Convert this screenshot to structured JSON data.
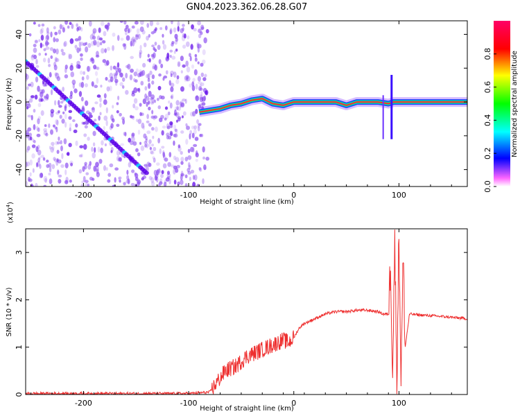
{
  "figure_title": "GN04.2023.362.06.28.G07",
  "colors": {
    "ridge": "#5a00e8",
    "noise": "#8a4cf0",
    "line": "#ee2f2f",
    "colorbar": [
      "#ff00ff",
      "#0000ff",
      "#00ffff",
      "#00ff00",
      "#ffff00",
      "#ff0000",
      "#ff0066"
    ]
  },
  "chart_data": [
    {
      "type": "heatmap",
      "title": "",
      "xlabel": "Height of straight line (km)",
      "ylabel": "Frequency (Hz)",
      "xlim": [
        -255,
        165
      ],
      "ylim": [
        -50,
        48
      ],
      "xticks": [
        -200,
        -100,
        0,
        100
      ],
      "xtick_labels": [
        "-200",
        "-100",
        "0",
        "100"
      ],
      "yticks": [
        -40,
        -20,
        0,
        20,
        40
      ],
      "ytick_labels": [
        "-40",
        "-20",
        "0",
        "20",
        "40"
      ],
      "colorbar": {
        "label": "Normalized spectral amplitude",
        "range": [
          0,
          1
        ],
        "ticks": [
          0,
          0.2,
          0.4,
          0.6,
          0.8
        ],
        "tick_labels": [
          "0.0",
          "0.2",
          "0.4",
          "0.6",
          "0.8"
        ]
      },
      "features": {
        "noisy_region_x": [
          -255,
          -82
        ],
        "diagonal_line": {
          "x": [
            -255,
            -140
          ],
          "y": [
            24,
            -42
          ]
        },
        "main_trace": {
          "x": [
            -90,
            -80,
            -70,
            -60,
            -50,
            -40,
            -30,
            -20,
            -10,
            0,
            20,
            40,
            50,
            60,
            80,
            90,
            95,
            100,
            120,
            140,
            165
          ],
          "y": [
            -6,
            -5,
            -4,
            -2,
            -1,
            1,
            2,
            -1,
            -2,
            0,
            0,
            0,
            -2,
            0,
            0,
            -1,
            0,
            0,
            0,
            0,
            0
          ]
        },
        "spike_x": 93,
        "spike_range": [
          -22,
          16
        ]
      }
    },
    {
      "type": "line",
      "title": "",
      "xlabel": "Height of straight line (km)",
      "ylabel": "SNR (10 * v/v)",
      "y_multiplier": "(x10",
      "y_multiplier_exp": "4",
      "y_multiplier_close": ")",
      "xlim": [
        -255,
        165
      ],
      "ylim": [
        0,
        3.5
      ],
      "xticks": [
        -200,
        -100,
        0,
        100
      ],
      "xtick_labels": [
        "-200",
        "-100",
        "0",
        "100"
      ],
      "yticks": [
        0,
        1,
        2,
        3
      ],
      "ytick_labels": [
        "0",
        "1",
        "2",
        "3"
      ],
      "series": [
        {
          "x": [
            -255,
            -200,
            -150,
            -100,
            -80,
            -75,
            -70,
            -65,
            -60,
            -55,
            -50,
            -45,
            -40,
            -35,
            -30,
            -25,
            -20,
            -15,
            -10,
            -5,
            0,
            5,
            10,
            15,
            20,
            25,
            30,
            40,
            50,
            60,
            70,
            80,
            85,
            90,
            92,
            94,
            96,
            98,
            100,
            102,
            104,
            106,
            110,
            120,
            140,
            165
          ],
          "y": [
            0.02,
            0.02,
            0.02,
            0.02,
            0.05,
            0.2,
            0.35,
            0.5,
            0.55,
            0.6,
            0.7,
            0.8,
            0.85,
            0.9,
            0.95,
            1.0,
            1.05,
            1.1,
            1.15,
            1.1,
            1.2,
            1.4,
            1.5,
            1.55,
            1.6,
            1.65,
            1.7,
            1.75,
            1.75,
            1.78,
            1.78,
            1.75,
            1.7,
            1.7,
            2.8,
            0.5,
            3.2,
            0.3,
            3.4,
            0.4,
            2.9,
            1.0,
            1.7,
            1.68,
            1.65,
            1.6
          ]
        }
      ]
    }
  ]
}
